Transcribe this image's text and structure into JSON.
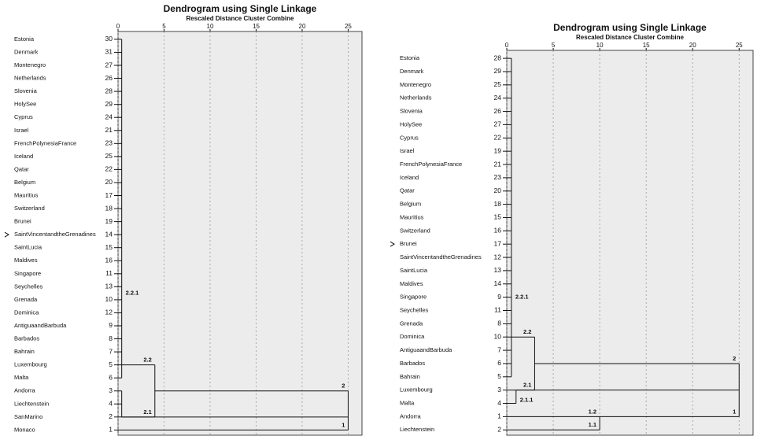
{
  "chart_data": [
    {
      "type": "dendrogram",
      "title": "Dendrogram using Single Linkage",
      "subtitle": "Rescaled Distance Cluster Combine",
      "xlim": [
        0,
        26.5
      ],
      "xticks": [
        0,
        5,
        10,
        15,
        20,
        25
      ],
      "grid": true,
      "rows": [
        {
          "name": "Estonia",
          "id": 30
        },
        {
          "name": "Denmark",
          "id": 31
        },
        {
          "name": "Montenegro",
          "id": 27
        },
        {
          "name": "Netherlands",
          "id": 26
        },
        {
          "name": "Slovenia",
          "id": 28
        },
        {
          "name": "HolySee",
          "id": 29
        },
        {
          "name": "Cyprus",
          "id": 24
        },
        {
          "name": "Israel",
          "id": 21
        },
        {
          "name": "FrenchPolynesiaFrance",
          "id": 23
        },
        {
          "name": "Iceland",
          "id": 25
        },
        {
          "name": "Qatar",
          "id": 22
        },
        {
          "name": "Belgium",
          "id": 20
        },
        {
          "name": "Mauritius",
          "id": 17
        },
        {
          "name": "Switzerland",
          "id": 18
        },
        {
          "name": "Brunei",
          "id": 19
        },
        {
          "name": "SaintVincentandtheGrenadines",
          "id": 14
        },
        {
          "name": "SaintLucia",
          "id": 15
        },
        {
          "name": "Maldives",
          "id": 16
        },
        {
          "name": "Singapore",
          "id": 11
        },
        {
          "name": "Seychelles",
          "id": 13
        },
        {
          "name": "Grenada",
          "id": 10
        },
        {
          "name": "Dominica",
          "id": 12
        },
        {
          "name": "AntiguaandBarbuda",
          "id": 9
        },
        {
          "name": "Barbados",
          "id": 8
        },
        {
          "name": "Bahrain",
          "id": 7
        },
        {
          "name": "Luxembourg",
          "id": 5
        },
        {
          "name": "Malta",
          "id": 6
        },
        {
          "name": "Andorra",
          "id": 3
        },
        {
          "name": "Liechtenstein",
          "id": 4
        },
        {
          "name": "SanMarino",
          "id": 2
        },
        {
          "name": "Monaco",
          "id": 1
        }
      ],
      "nodes": [
        {
          "height": 0.4,
          "rows": [
            0,
            26
          ],
          "stem": 25,
          "label": "2.2.1"
        },
        {
          "height": 0.4,
          "rows": [
            27,
            29
          ],
          "stem": 29
        },
        {
          "height": 4,
          "rows": [
            25,
            29
          ],
          "stem": 27,
          "top_label": "2.2",
          "bottom_label": "2.1"
        },
        {
          "height": 25,
          "rows": [
            27,
            30
          ],
          "top_label": "2",
          "bottom_label": "1"
        }
      ]
    },
    {
      "type": "dendrogram",
      "title": "Dendrogram using Single Linkage",
      "subtitle": "Rescaled Distance Cluster Combine",
      "xlim": [
        0,
        26.5
      ],
      "xticks": [
        0,
        5,
        10,
        15,
        20,
        25
      ],
      "grid": true,
      "rows": [
        {
          "name": "Estonia",
          "id": 28
        },
        {
          "name": "Denmark",
          "id": 29
        },
        {
          "name": "Montenegro",
          "id": 25
        },
        {
          "name": "Netherlands",
          "id": 24
        },
        {
          "name": "Slovenia",
          "id": 26
        },
        {
          "name": "HolySee",
          "id": 27
        },
        {
          "name": "Cyprus",
          "id": 22
        },
        {
          "name": "Israel",
          "id": 19
        },
        {
          "name": "FrenchPolynesiaFrance",
          "id": 21
        },
        {
          "name": "Iceland",
          "id": 23
        },
        {
          "name": "Qatar",
          "id": 20
        },
        {
          "name": "Belgium",
          "id": 18
        },
        {
          "name": "Mauritius",
          "id": 15
        },
        {
          "name": "Switzerland",
          "id": 16
        },
        {
          "name": "Brunei",
          "id": 17
        },
        {
          "name": "SaintVincentandtheGrenadines",
          "id": 12
        },
        {
          "name": "SaintLucia",
          "id": 13
        },
        {
          "name": "Maldives",
          "id": 14
        },
        {
          "name": "Singapore",
          "id": 9
        },
        {
          "name": "Seychelles",
          "id": 11
        },
        {
          "name": "Grenada",
          "id": 8
        },
        {
          "name": "Dominica",
          "id": 10
        },
        {
          "name": "AntiguaandBarbuda",
          "id": 7
        },
        {
          "name": "Barbados",
          "id": 6
        },
        {
          "name": "Bahrain",
          "id": 5
        },
        {
          "name": "Luxembourg",
          "id": 3
        },
        {
          "name": "Malta",
          "id": 4
        },
        {
          "name": "Andorra",
          "id": 1
        },
        {
          "name": "Liechtenstein",
          "id": 2
        }
      ],
      "nodes": [
        {
          "height": 0.5,
          "rows": [
            0,
            24
          ],
          "stem": 21,
          "label": "2.2.1"
        },
        {
          "height": 1,
          "rows": [
            25,
            26
          ],
          "stem": 25,
          "label": "2.1.1"
        },
        {
          "height": 3,
          "rows": [
            21,
            25
          ],
          "stem": 23,
          "top_label": "2.2",
          "bottom_label": "2.1"
        },
        {
          "height": 10,
          "rows": [
            27,
            28
          ],
          "stem": 27,
          "top_label": "1.2",
          "bottom_label": "1.1"
        },
        {
          "height": 25,
          "rows": [
            23,
            27
          ],
          "top_label": "2",
          "bottom_label": "1"
        }
      ]
    }
  ]
}
